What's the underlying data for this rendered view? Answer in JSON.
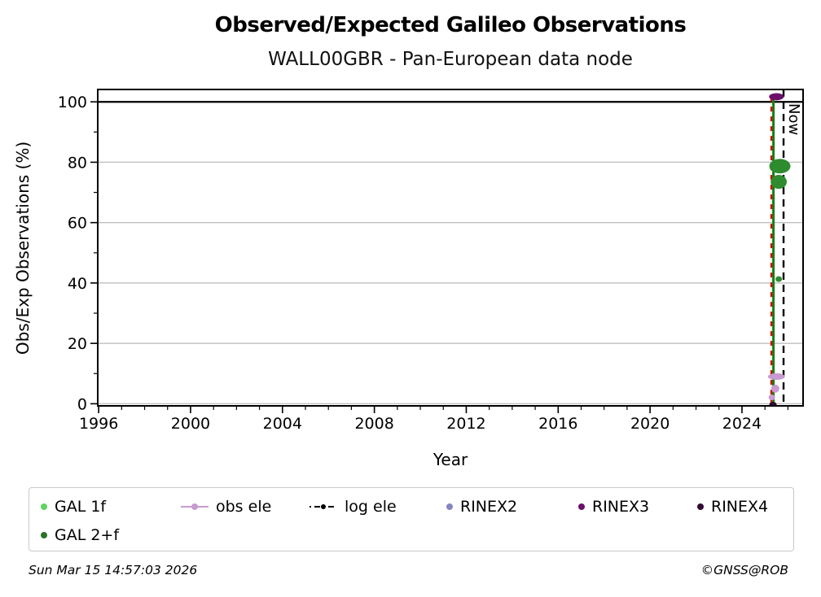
{
  "header": {
    "title": "Observed/Expected Galileo Observations",
    "subtitle": "WALL00GBR - Pan-European data node"
  },
  "chart_data": {
    "type": "scatter",
    "title": "Observed/Expected Galileo Observations",
    "subtitle": "WALL00GBR - Pan-European data node",
    "xlabel": "Year",
    "ylabel": "Obs/Exp Observations (%)",
    "xlim": [
      1995.96,
      2026.66
    ],
    "ylim": [
      -0.7,
      104.1
    ],
    "x_major_ticks": [
      1996,
      2000,
      2004,
      2008,
      2012,
      2016,
      2020,
      2024
    ],
    "x_minor_step": 1,
    "y_major_ticks": [
      0,
      20,
      40,
      60,
      80,
      100
    ],
    "y_minor_ticks": [
      10,
      30,
      50,
      70,
      90
    ],
    "grid": "horizontal-only",
    "gridline_color": "#bfbfbf",
    "hline": {
      "y": 100,
      "color": "#000000",
      "width": 2.2
    },
    "now_line": {
      "x": 2025.81,
      "label": "Now",
      "color": "#000000",
      "style": "dashed"
    },
    "aux_lines": [
      {
        "name": "gal-track-line",
        "x": 2025.37,
        "y1": -0.2,
        "y2": 102,
        "color": "#128012",
        "style": "solid",
        "width": 3
      },
      {
        "name": "red-dashed-line",
        "x": 2025.28,
        "y1": -0.2,
        "y2": 102,
        "color": "#cc1100",
        "style": "dashed",
        "width": 2.5
      }
    ],
    "series": [
      {
        "name": "GAL 1f",
        "color": "#5fd35f"
      },
      {
        "name": "GAL 2+f",
        "color": "#2e8b2e"
      },
      {
        "name": "obs ele",
        "color": "#c99ad1"
      },
      {
        "name": "log ele",
        "color": "#000000"
      },
      {
        "name": "RINEX2",
        "color": "#8585c2"
      },
      {
        "name": "RINEX3",
        "color": "#6b0f6b"
      },
      {
        "name": "RINEX4",
        "color": "#320a32"
      }
    ],
    "clusters": [
      {
        "series": "RINEX3",
        "x": 2025.5,
        "y": 101.7,
        "w": 0.64,
        "h": 2.4
      },
      {
        "series": "GAL 2+f",
        "x": 2025.65,
        "y": 78.7,
        "w": 0.92,
        "h": 4.8
      },
      {
        "series": "GAL 2+f",
        "x": 2025.6,
        "y": 73.5,
        "w": 0.7,
        "h": 4.6
      },
      {
        "series": "GAL 2+f",
        "x": 2025.6,
        "y": 41.3,
        "w": 0.28,
        "h": 1.9
      },
      {
        "series": "obs ele",
        "x": 2025.5,
        "y": 9.0,
        "w": 0.74,
        "h": 2.2
      },
      {
        "series": "obs ele",
        "x": 2025.45,
        "y": 5.0,
        "w": 0.35,
        "h": 2.7
      },
      {
        "series": "obs ele",
        "x": 2025.3,
        "y": 2.1,
        "w": 0.28,
        "h": 1.9
      },
      {
        "series": "RINEX4",
        "x": 2025.35,
        "y": -0.2,
        "w": 0.32,
        "h": 1.6
      }
    ],
    "legend_position": "bottom"
  },
  "legend": {
    "items": [
      {
        "label": "GAL 1f",
        "color": "#5fd35f",
        "marker": "dot"
      },
      {
        "label": "GAL 2+f",
        "color": "#267326",
        "marker": "dot"
      },
      {
        "label": "obs ele",
        "color": "#c99ad1",
        "marker": "line-dot"
      },
      {
        "label": "log ele",
        "color": "#000000",
        "marker": "dashdot-dot"
      },
      {
        "label": "RINEX2",
        "color": "#8585c2",
        "marker": "dot"
      },
      {
        "label": "RINEX3",
        "color": "#6b0f6b",
        "marker": "dot"
      },
      {
        "label": "RINEX4",
        "color": "#320a32",
        "marker": "dot"
      }
    ]
  },
  "footer": {
    "timestamp": "Sun Mar 15 14:57:03 2026",
    "credit": "©GNSS@ROB"
  }
}
